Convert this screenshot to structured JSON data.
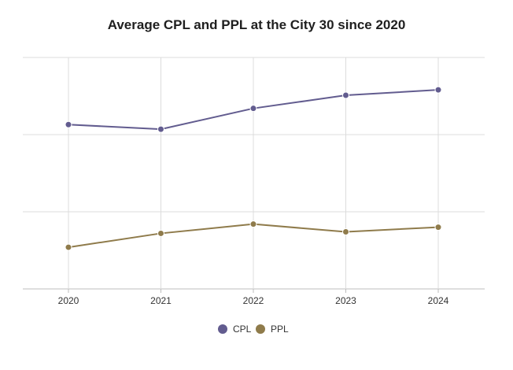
{
  "chart_data": {
    "type": "line",
    "title": "Average CPL and PPL at the City 30 since 2020",
    "xlabel": "",
    "ylabel": "",
    "categories": [
      "2020",
      "2021",
      "2022",
      "2023",
      "2024"
    ],
    "ylim": [
      0,
      300
    ],
    "y_gridlines": [
      0,
      100,
      200,
      300
    ],
    "y_tick_labels_shown": false,
    "grid": true,
    "legend_position": "bottom-center",
    "series": [
      {
        "name": "CPL",
        "color": "#625c8f",
        "values": [
          213,
          207,
          234,
          251,
          258
        ]
      },
      {
        "name": "PPL",
        "color": "#8f7b4b",
        "values": [
          54,
          72,
          84,
          74,
          80
        ]
      }
    ]
  }
}
